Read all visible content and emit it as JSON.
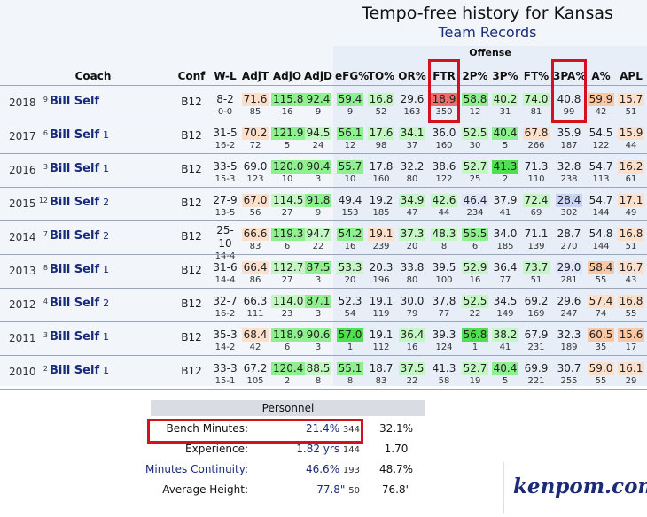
{
  "title": "Tempo-free history for Kansas",
  "subtitle": "Team Records",
  "offense_label": "Offense",
  "headers": {
    "coach": "Coach",
    "conf": "Conf",
    "wl": "W-L",
    "adjt": "AdjT",
    "adjo": "AdjO",
    "adjd": "AdjD",
    "efg": "eFG%",
    "to": "TO%",
    "or": "OR%",
    "ftr": "FTR",
    "p2": "2P%",
    "p3": "3P%",
    "ft": "FT%",
    "pa3": "3PA%",
    "a": "A%",
    "apl": "APL"
  },
  "colors": {
    "green_dark": "#4ee04e",
    "green_mid": "#8ef08e",
    "green_light": "#c4f7c4",
    "orange_light": "#fde0cc",
    "orange": "#fcc7a3",
    "red": "#f26b6b",
    "blue": "#c9d3f5",
    "blue_light": "#dfe5fb",
    "highlight_box": "#d4111f",
    "link": "#1a2b7a"
  },
  "rows": [
    {
      "year": "2018",
      "seed": "9",
      "coach": "Bill Self",
      "tenure": "",
      "conf": "B12",
      "wl": "8-2",
      "cwl": "0-0",
      "adjt": [
        "71.6",
        "85",
        "ol"
      ],
      "adjo": [
        "115.8",
        "16",
        "gm"
      ],
      "adjd": [
        "92.4",
        "9",
        "gm"
      ],
      "efg": [
        "59.4",
        "9",
        "gm"
      ],
      "to": [
        "16.8",
        "52",
        "gl"
      ],
      "or": [
        "29.6",
        "163",
        ""
      ],
      "ftr": [
        "18.9",
        "350",
        "rd"
      ],
      "p2": [
        "58.8",
        "12",
        "gm"
      ],
      "p3": [
        "40.2",
        "31",
        "gl"
      ],
      "ft": [
        "74.0",
        "81",
        "gl"
      ],
      "pa3": [
        "40.8",
        "99",
        ""
      ],
      "a": [
        "59.9",
        "42",
        "or"
      ],
      "apl": [
        "15.7",
        "51",
        "ol"
      ]
    },
    {
      "year": "2017",
      "seed": "6",
      "coach": "Bill Self",
      "tenure": "1",
      "conf": "B12",
      "wl": "31-5",
      "cwl": "16-2",
      "adjt": [
        "70.2",
        "72",
        "ol"
      ],
      "adjo": [
        "121.9",
        "5",
        "gm"
      ],
      "adjd": [
        "94.5",
        "24",
        "gl"
      ],
      "efg": [
        "56.1",
        "12",
        "gm"
      ],
      "to": [
        "17.6",
        "98",
        "gl"
      ],
      "or": [
        "34.1",
        "37",
        "gl"
      ],
      "ftr": [
        "36.0",
        "160",
        ""
      ],
      "p2": [
        "52.5",
        "30",
        "gl"
      ],
      "p3": [
        "40.4",
        "5",
        "gm"
      ],
      "ft": [
        "67.8",
        "266",
        "ol"
      ],
      "pa3": [
        "35.9",
        "187",
        ""
      ],
      "a": [
        "54.5",
        "122",
        ""
      ],
      "apl": [
        "15.9",
        "44",
        "ol"
      ]
    },
    {
      "year": "2016",
      "seed": "3",
      "coach": "Bill Self",
      "tenure": "1",
      "conf": "B12",
      "wl": "33-5",
      "cwl": "15-3",
      "adjt": [
        "69.0",
        "123",
        ""
      ],
      "adjo": [
        "120.0",
        "10",
        "gm"
      ],
      "adjd": [
        "90.4",
        "3",
        "gm"
      ],
      "efg": [
        "55.7",
        "10",
        "gm"
      ],
      "to": [
        "17.8",
        "160",
        ""
      ],
      "or": [
        "32.2",
        "80",
        ""
      ],
      "ftr": [
        "38.6",
        "122",
        ""
      ],
      "p2": [
        "52.7",
        "25",
        "gl"
      ],
      "p3": [
        "41.3",
        "2",
        "gd"
      ],
      "ft": [
        "71.3",
        "110",
        ""
      ],
      "pa3": [
        "32.8",
        "238",
        ""
      ],
      "a": [
        "54.7",
        "113",
        ""
      ],
      "apl": [
        "16.2",
        "61",
        "ol"
      ]
    },
    {
      "year": "2015",
      "seed": "12",
      "coach": "Bill Self",
      "tenure": "2",
      "conf": "B12",
      "wl": "27-9",
      "cwl": "13-5",
      "adjt": [
        "67.0",
        "56",
        "ol"
      ],
      "adjo": [
        "114.5",
        "27",
        "gl"
      ],
      "adjd": [
        "91.8",
        "9",
        "gm"
      ],
      "efg": [
        "49.4",
        "153",
        ""
      ],
      "to": [
        "19.2",
        "185",
        ""
      ],
      "or": [
        "34.9",
        "47",
        "gl"
      ],
      "ftr": [
        "42.6",
        "44",
        "gl"
      ],
      "p2": [
        "46.4",
        "234",
        "bl"
      ],
      "p3": [
        "37.9",
        "41",
        ""
      ],
      "ft": [
        "72.4",
        "69",
        "gl"
      ],
      "pa3": [
        "28.4",
        "302",
        "bb"
      ],
      "a": [
        "54.7",
        "144",
        ""
      ],
      "apl": [
        "17.1",
        "49",
        "ol"
      ]
    },
    {
      "year": "2014",
      "seed": "7",
      "coach": "Bill Self",
      "tenure": "2",
      "conf": "B12",
      "wl": "25-10",
      "cwl": "14-4",
      "adjt": [
        "66.6",
        "83",
        "ol"
      ],
      "adjo": [
        "119.3",
        "6",
        "gm"
      ],
      "adjd": [
        "94.7",
        "22",
        "gl"
      ],
      "efg": [
        "54.2",
        "16",
        "gm"
      ],
      "to": [
        "19.1",
        "239",
        "ol"
      ],
      "or": [
        "37.3",
        "20",
        "gl"
      ],
      "ftr": [
        "48.3",
        "8",
        "gl"
      ],
      "p2": [
        "55.5",
        "6",
        "gm"
      ],
      "p3": [
        "34.0",
        "185",
        ""
      ],
      "ft": [
        "71.1",
        "139",
        ""
      ],
      "pa3": [
        "28.7",
        "270",
        ""
      ],
      "a": [
        "54.8",
        "144",
        ""
      ],
      "apl": [
        "16.8",
        "51",
        "ol"
      ]
    },
    {
      "year": "2013",
      "seed": "8",
      "coach": "Bill Self",
      "tenure": "1",
      "conf": "B12",
      "wl": "31-6",
      "cwl": "14-4",
      "adjt": [
        "66.4",
        "86",
        "ol"
      ],
      "adjo": [
        "112.7",
        "27",
        "gl"
      ],
      "adjd": [
        "87.5",
        "3",
        "gm"
      ],
      "efg": [
        "53.3",
        "20",
        "gl"
      ],
      "to": [
        "20.3",
        "196",
        ""
      ],
      "or": [
        "33.8",
        "80",
        ""
      ],
      "ftr": [
        "39.5",
        "100",
        ""
      ],
      "p2": [
        "52.9",
        "16",
        "gl"
      ],
      "p3": [
        "36.4",
        "77",
        ""
      ],
      "ft": [
        "73.7",
        "51",
        "gl"
      ],
      "pa3": [
        "29.0",
        "281",
        "bl"
      ],
      "a": [
        "58.4",
        "55",
        "or"
      ],
      "apl": [
        "16.7",
        "43",
        "ol"
      ]
    },
    {
      "year": "2012",
      "seed": "4",
      "coach": "Bill Self",
      "tenure": "2",
      "conf": "B12",
      "wl": "32-7",
      "cwl": "16-2",
      "adjt": [
        "66.3",
        "111",
        ""
      ],
      "adjo": [
        "114.0",
        "23",
        "gl"
      ],
      "adjd": [
        "87.1",
        "3",
        "gm"
      ],
      "efg": [
        "52.3",
        "54",
        ""
      ],
      "to": [
        "19.1",
        "119",
        ""
      ],
      "or": [
        "30.0",
        "79",
        ""
      ],
      "ftr": [
        "37.8",
        "77",
        ""
      ],
      "p2": [
        "52.5",
        "22",
        "gl"
      ],
      "p3": [
        "34.5",
        "149",
        ""
      ],
      "ft": [
        "69.2",
        "169",
        ""
      ],
      "pa3": [
        "29.6",
        "247",
        ""
      ],
      "a": [
        "57.4",
        "74",
        "ol"
      ],
      "apl": [
        "16.8",
        "55",
        "ol"
      ]
    },
    {
      "year": "2011",
      "seed": "3",
      "coach": "Bill Self",
      "tenure": "1",
      "conf": "B12",
      "wl": "35-3",
      "cwl": "14-2",
      "adjt": [
        "68.4",
        "42",
        "ol"
      ],
      "adjo": [
        "118.9",
        "6",
        "gm"
      ],
      "adjd": [
        "90.6",
        "3",
        "gm"
      ],
      "efg": [
        "57.0",
        "1",
        "gd"
      ],
      "to": [
        "19.1",
        "112",
        ""
      ],
      "or": [
        "36.4",
        "16",
        "gl"
      ],
      "ftr": [
        "39.3",
        "124",
        ""
      ],
      "p2": [
        "56.8",
        "1",
        "gd"
      ],
      "p3": [
        "38.2",
        "41",
        "gl"
      ],
      "ft": [
        "67.9",
        "231",
        ""
      ],
      "pa3": [
        "32.3",
        "189",
        ""
      ],
      "a": [
        "60.5",
        "35",
        "or"
      ],
      "apl": [
        "15.6",
        "17",
        "or"
      ]
    },
    {
      "year": "2010",
      "seed": "2",
      "coach": "Bill Self",
      "tenure": "1",
      "conf": "B12",
      "wl": "33-3",
      "cwl": "15-1",
      "adjt": [
        "67.2",
        "105",
        ""
      ],
      "adjo": [
        "120.4",
        "2",
        "gm"
      ],
      "adjd": [
        "88.5",
        "8",
        "gl"
      ],
      "efg": [
        "55.1",
        "8",
        "gm"
      ],
      "to": [
        "18.7",
        "83",
        ""
      ],
      "or": [
        "37.5",
        "22",
        "gl"
      ],
      "ftr": [
        "41.3",
        "58",
        ""
      ],
      "p2": [
        "52.7",
        "19",
        "gl"
      ],
      "p3": [
        "40.4",
        "5",
        "gm"
      ],
      "ft": [
        "69.9",
        "221",
        ""
      ],
      "pa3": [
        "30.7",
        "255",
        ""
      ],
      "a": [
        "59.0",
        "55",
        "ol"
      ],
      "apl": [
        "16.1",
        "29",
        "ol"
      ]
    }
  ],
  "personnel": {
    "header": "Personnel",
    "rows": [
      {
        "label": "Bench Minutes:",
        "value": "21.4%",
        "rank": "344",
        "d1": "32.1%",
        "link": false
      },
      {
        "label": "Experience:",
        "value": "1.82 yrs",
        "rank": "144",
        "d1": "1.70",
        "link": false
      },
      {
        "label": "Minutes Continuity:",
        "value": "46.6%",
        "rank": "193",
        "d1": "48.7%",
        "link": true
      },
      {
        "label": "Average Height:",
        "value": "77.8\"",
        "rank": "50",
        "d1": "76.8\"",
        "link": false
      }
    ]
  },
  "logo": "kenpom.com"
}
